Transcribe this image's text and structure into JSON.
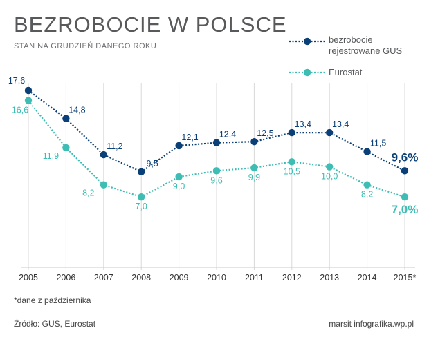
{
  "chart_data": {
    "type": "line",
    "title": "BEZROBOCIE W POLSCE",
    "subtitle": "STAN NA GRUDZIEŃ DANEGO ROKU",
    "categories": [
      "2005",
      "2006",
      "2007",
      "2008",
      "2009",
      "2010",
      "2011",
      "2012",
      "2013",
      "2014",
      "2015*"
    ],
    "series": [
      {
        "name": "bezrobocie rejestrowane GUS",
        "color": "#0b3f77",
        "values": [
          17.6,
          14.8,
          11.2,
          9.5,
          12.1,
          12.4,
          12.5,
          13.4,
          13.4,
          11.5,
          9.6
        ],
        "labels": [
          "17,6",
          "14,8",
          "11,2",
          "9,5",
          "12,1",
          "12,4",
          "12,5",
          "13,4",
          "13,4",
          "11,5",
          "9,6%"
        ]
      },
      {
        "name": "Eurostat",
        "color": "#3dbdb4",
        "values": [
          16.6,
          11.9,
          8.2,
          7.0,
          9.0,
          9.6,
          9.9,
          10.5,
          10.0,
          8.2,
          7.0
        ],
        "labels": [
          "16,6",
          "11,9",
          "8,2",
          "7,0",
          "9,0",
          "9,6",
          "9,9",
          "10,5",
          "10,0",
          "8,2",
          "7,0%"
        ]
      }
    ],
    "ylim": [
      0,
      18.5
    ],
    "xlabel": "",
    "ylabel": "",
    "grid": "vertical"
  },
  "legend": {
    "gus_line1": "bezrobocie",
    "gus_line2": "rejestrowane GUS",
    "eurostat": "Eurostat"
  },
  "footnote": "*dane z października",
  "source": "Źródło: GUS, Eurostat",
  "credit": "marsit infografika.wp.pl"
}
